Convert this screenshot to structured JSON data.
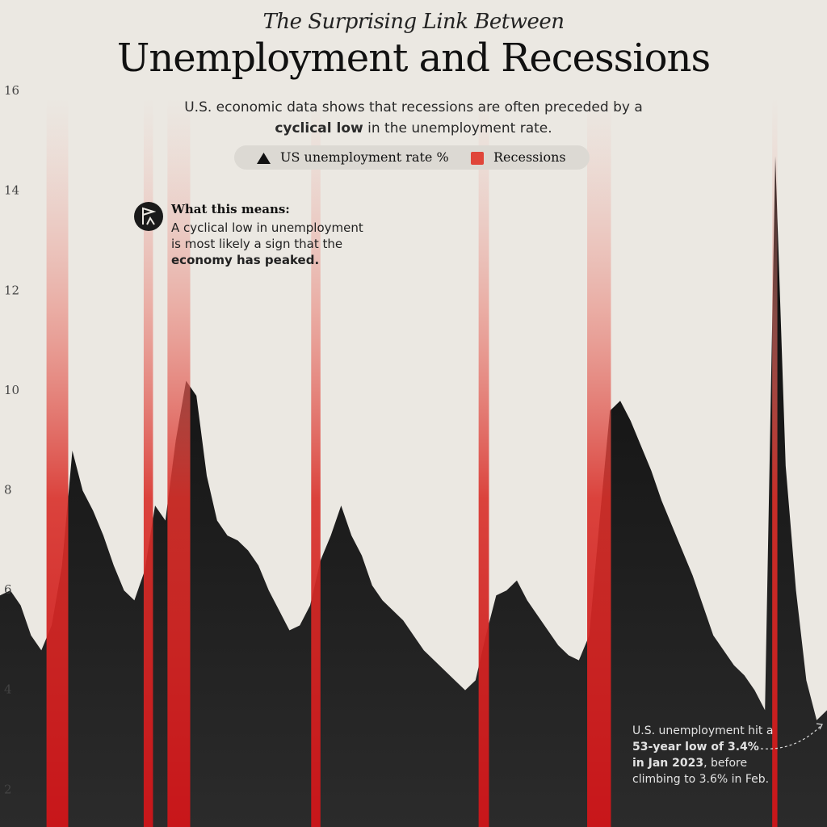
{
  "chart_data": {
    "type": "area",
    "kicker": "The Surprising Link Between",
    "title": "Unemployment and Recessions",
    "subtitle": [
      {
        "text": "U.S. economic data shows that recessions are often preceded by a ",
        "bold": false
      },
      {
        "text": "cyclical low",
        "bold": true
      },
      {
        "text": " in the unemployment rate.",
        "bold": false
      }
    ],
    "categories": [
      null,
      null,
      null,
      null,
      null,
      null,
      null,
      null,
      null,
      null,
      null,
      null,
      null,
      null,
      null,
      null,
      null,
      null,
      null,
      null,
      null,
      null,
      null,
      null,
      null,
      null,
      null,
      null,
      null,
      null,
      null,
      null,
      null,
      null,
      null,
      null,
      null,
      null,
      null,
      null,
      null,
      null,
      null,
      null,
      null,
      null,
      null,
      null,
      null,
      null,
      null,
      null,
      null,
      null,
      null,
      null,
      null,
      null,
      null,
      null,
      null,
      null,
      null,
      null,
      null,
      null,
      null,
      null,
      null,
      null,
      null,
      null,
      null,
      null,
      null,
      null,
      null,
      null,
      null,
      null,
      null
    ],
    "series": [
      {
        "name": "US unemployment rate %",
        "color": "#111111",
        "values": [
          5.9,
          6.0,
          5.7,
          5.1,
          4.8,
          5.3,
          6.5,
          8.8,
          8.0,
          7.6,
          7.1,
          6.5,
          6.0,
          5.8,
          6.4,
          7.7,
          7.4,
          9.0,
          10.2,
          9.9,
          8.3,
          7.4,
          7.1,
          7.0,
          6.8,
          6.5,
          6.0,
          5.6,
          5.2,
          5.3,
          5.7,
          6.6,
          7.1,
          7.7,
          7.1,
          6.7,
          6.1,
          5.8,
          5.6,
          5.4,
          5.1,
          4.8,
          4.6,
          4.4,
          4.2,
          4.0,
          4.2,
          5.1,
          5.9,
          6.0,
          6.2,
          5.8,
          5.5,
          5.2,
          4.9,
          4.7,
          4.6,
          5.1,
          7.4,
          9.6,
          9.8,
          9.4,
          8.9,
          8.4,
          7.8,
          7.3,
          6.8,
          6.3,
          5.7,
          5.1,
          4.8,
          4.5,
          4.3,
          4.0,
          3.6,
          14.7,
          8.5,
          6.0,
          4.2,
          3.4,
          3.6
        ]
      }
    ],
    "recessions": {
      "name": "Recessions",
      "color": "#e0463a",
      "ranges": [
        {
          "start": 4.5,
          "end": 6.6
        },
        {
          "start": 13.9,
          "end": 14.8
        },
        {
          "start": 16.2,
          "end": 18.4
        },
        {
          "start": 30.1,
          "end": 31.0
        },
        {
          "start": 46.3,
          "end": 47.3
        },
        {
          "start": 56.8,
          "end": 59.1
        },
        {
          "start": 74.7,
          "end": 75.2
        }
      ]
    },
    "ylim": [
      1.26,
      17.83
    ],
    "yticks": [
      2,
      4,
      6,
      8,
      10,
      12,
      14,
      16
    ],
    "annotation": {
      "heading": "What this means:",
      "body": [
        {
          "text": "A cyclical low in unemployment is most likely a sign that the ",
          "bold": false
        },
        {
          "text": "economy has peaked.",
          "bold": true
        }
      ]
    },
    "note": [
      {
        "text": "U.S. unemployment hit a ",
        "bold": false
      },
      {
        "text": "53-year low of 3.4% in Jan 2023",
        "bold": true
      },
      {
        "text": ", before climbing to 3.6% in Feb.",
        "bold": false
      }
    ]
  }
}
